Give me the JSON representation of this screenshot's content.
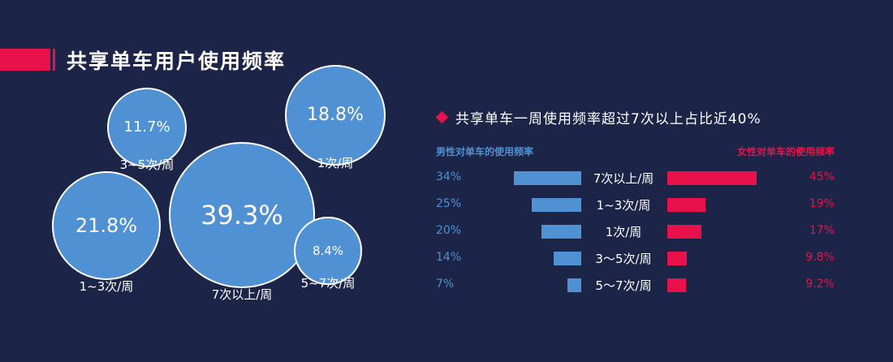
{
  "title": "共享单车用户使用频率",
  "headline": "共享单车一周使用频率超过7次以上占比近40%",
  "colors": {
    "background": "#1c2548",
    "accent": "#e8114a",
    "male": "#4f91d3",
    "female": "#e8114a"
  },
  "chart_data": [
    {
      "type": "bubble",
      "points": [
        {
          "label": "7次以上/周",
          "value": 39.3,
          "value_text": "39.3%"
        },
        {
          "label": "1~3次/周",
          "value": 21.8,
          "value_text": "21.8%"
        },
        {
          "label": "1次/周",
          "value": 18.8,
          "value_text": "18.8%"
        },
        {
          "label": "3~5次/周",
          "value": 11.7,
          "value_text": "11.7%"
        },
        {
          "label": "5~7次/周",
          "value": 8.4,
          "value_text": "8.4%"
        }
      ]
    },
    {
      "type": "bar",
      "orientation": "horizontal-butterfly",
      "categories": [
        "7次以上/周",
        "1~3次/周",
        "1次/周",
        "3〜5次/周",
        "5〜7次/周"
      ],
      "series": [
        {
          "name": "男性对单车的使用频率",
          "values": [
            34,
            25,
            20,
            14,
            7
          ],
          "value_texts": [
            "34%",
            "25%",
            "20%",
            "14%",
            "7%"
          ]
        },
        {
          "name": "女性对单车的使用频率",
          "values": [
            45,
            19,
            17,
            9.8,
            9.2
          ],
          "value_texts": [
            "45%",
            "19%",
            "17%",
            "9.8%",
            "9.2%"
          ]
        }
      ]
    }
  ]
}
